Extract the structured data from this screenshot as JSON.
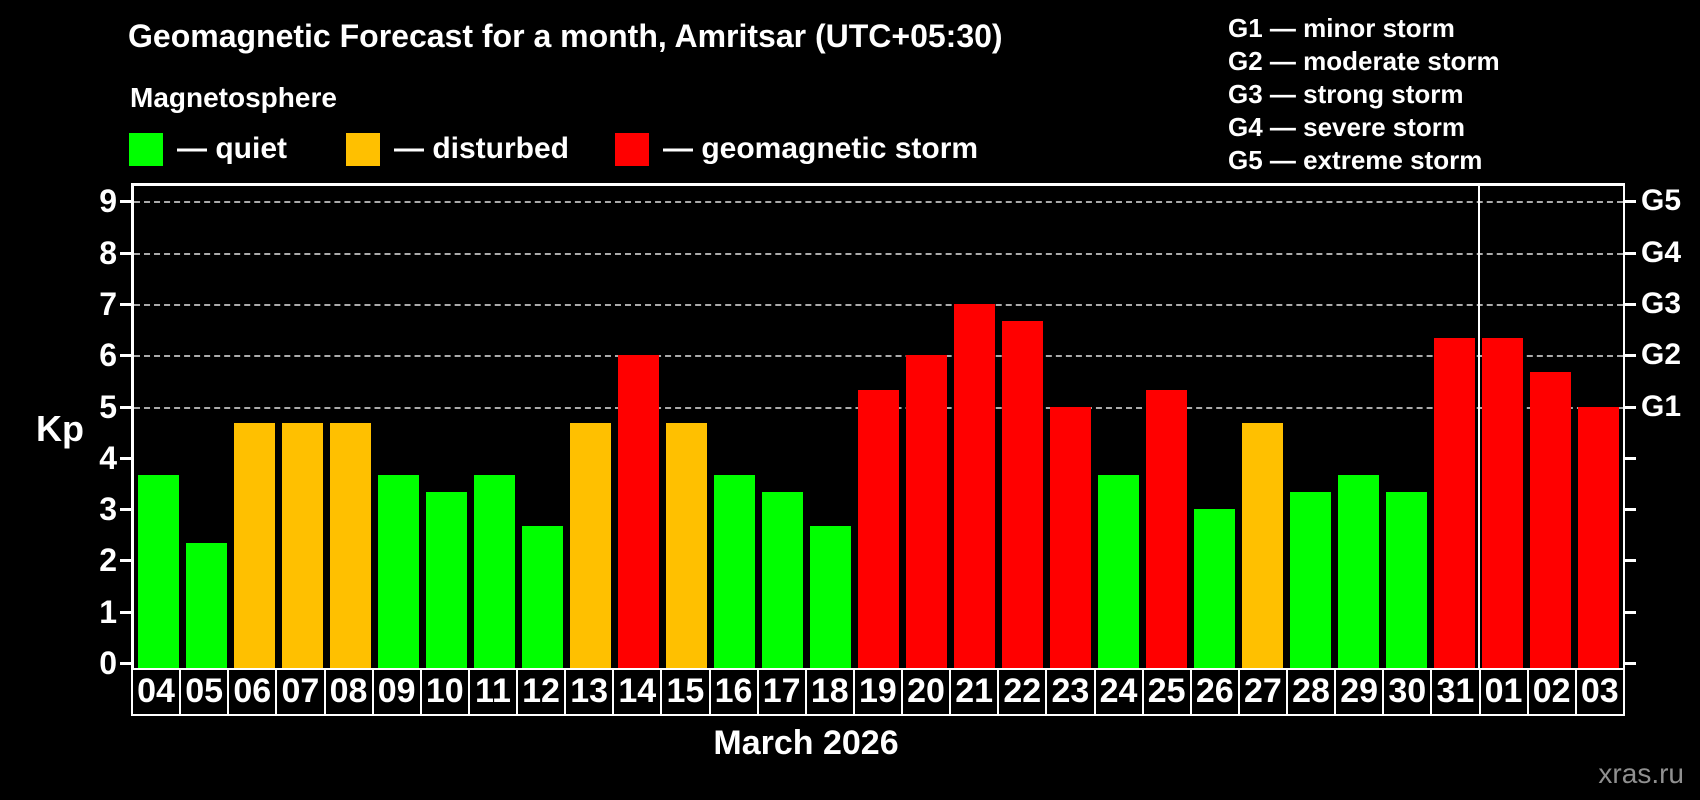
{
  "title": "Geomagnetic Forecast for a month, Amritsar (UTC+05:30)",
  "subtitle": "Magnetosphere",
  "legend": [
    {
      "key": "quiet",
      "label": "— quiet",
      "color": "#00ff00"
    },
    {
      "key": "disturbed",
      "label": "— disturbed",
      "color": "#ffc000"
    },
    {
      "key": "storm",
      "label": "— geomagnetic storm",
      "color": "#ff0000"
    }
  ],
  "storm_scale_legend": [
    "G1 — minor storm",
    "G2 — moderate storm",
    "G3 — strong storm",
    "G4 — severe storm",
    "G5 — extreme storm"
  ],
  "watermark": "xras.ru",
  "chart_data": {
    "type": "bar",
    "title": "Geomagnetic Forecast for a month, Amritsar (UTC+05:30)",
    "ylabel": "Kp",
    "xlabel": "March 2026",
    "month_label": "March 2026",
    "ylim": [
      0,
      9.4
    ],
    "yticks": [
      0,
      1,
      2,
      3,
      4,
      5,
      6,
      7,
      8,
      9
    ],
    "gridline_values": [
      5,
      6,
      7,
      8,
      9
    ],
    "grid": "dashed, at Kp 5-9 only",
    "legend_position": "top",
    "right_axis_labels": [
      {
        "kp": 5,
        "label": "G1"
      },
      {
        "kp": 6,
        "label": "G2"
      },
      {
        "kp": 7,
        "label": "G3"
      },
      {
        "kp": 8,
        "label": "G4"
      },
      {
        "kp": 9,
        "label": "G5"
      }
    ],
    "month_separator_after_index": 27,
    "categories": [
      "04",
      "05",
      "06",
      "07",
      "08",
      "09",
      "10",
      "11",
      "12",
      "13",
      "14",
      "15",
      "16",
      "17",
      "18",
      "19",
      "20",
      "21",
      "22",
      "23",
      "24",
      "25",
      "26",
      "27",
      "28",
      "29",
      "30",
      "31",
      "01",
      "02",
      "03"
    ],
    "values": [
      3.67,
      2.33,
      4.67,
      4.67,
      4.67,
      3.67,
      3.33,
      3.67,
      2.67,
      4.67,
      6.0,
      4.67,
      3.67,
      3.33,
      2.67,
      5.33,
      6.0,
      7.0,
      6.67,
      5.0,
      3.67,
      5.33,
      3.0,
      4.67,
      3.33,
      3.67,
      3.33,
      6.33,
      6.33,
      5.67,
      5.0
    ],
    "status": [
      "quiet",
      "quiet",
      "disturbed",
      "disturbed",
      "disturbed",
      "quiet",
      "quiet",
      "quiet",
      "quiet",
      "disturbed",
      "storm",
      "disturbed",
      "quiet",
      "quiet",
      "quiet",
      "storm",
      "storm",
      "storm",
      "storm",
      "storm",
      "quiet",
      "storm",
      "quiet",
      "disturbed",
      "quiet",
      "quiet",
      "quiet",
      "storm",
      "storm",
      "storm",
      "storm"
    ]
  }
}
